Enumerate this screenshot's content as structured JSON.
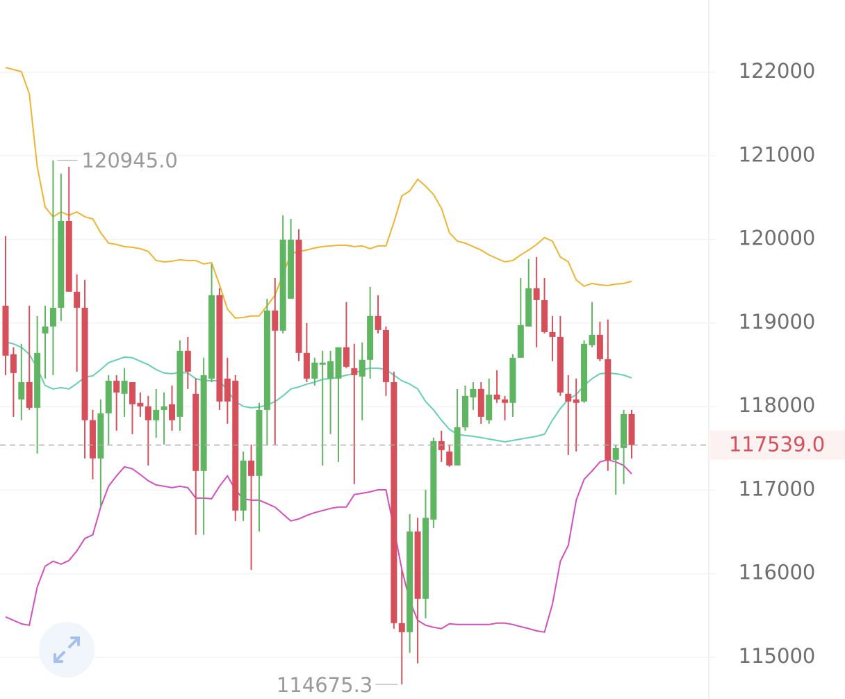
{
  "chart_data": {
    "type": "candlestick",
    "up_color": "#5fb561",
    "down_color": "#d6505b",
    "ylim": [
      114500,
      122865
    ],
    "yticks": [
      115000,
      116000,
      117000,
      118000,
      119000,
      120000,
      121000,
      122000
    ],
    "grid": true,
    "open": [
      119207,
      118625,
      118085,
      118292,
      117985,
      118875,
      118958,
      119182,
      120221,
      119374,
      119182,
      117836,
      117379,
      117919,
      118309,
      118152,
      118292,
      118044,
      118002,
      117836,
      117960,
      118027,
      117877,
      118667,
      118152,
      117229,
      118334,
      119332,
      118334,
      118309,
      116755,
      117353,
      117170,
      117960,
      119149,
      118908,
      119290,
      119997,
      118642,
      118334,
      118501,
      118334,
      118334,
      118709,
      118459,
      118359,
      118559,
      119083,
      118916,
      118292,
      115408,
      115300,
      116505,
      115699,
      116647,
      117586,
      117462,
      117295,
      117752,
      118110,
      118210,
      117836,
      118143,
      118085,
      118044,
      118584,
      118958,
      119415,
      119274,
      118891,
      118833,
      118152,
      118085,
      118060,
      118734,
      118858,
      118567,
      117362,
      117503,
      117910
    ],
    "high": [
      120039,
      118709,
      118750,
      119207,
      119083,
      119207,
      120945,
      120787,
      120870,
      119581,
      119515,
      117960,
      118085,
      118376,
      118376,
      118459,
      118292,
      118168,
      118127,
      118210,
      118168,
      118251,
      118792,
      118833,
      118334,
      118584,
      119706,
      119415,
      118584,
      118376,
      117462,
      117545,
      118044,
      119290,
      119540,
      120288,
      120246,
      120122,
      118999,
      118584,
      118667,
      118667,
      118709,
      119249,
      118750,
      118767,
      119432,
      119332,
      118958,
      118417,
      116048,
      116713,
      116668,
      117004,
      117628,
      117711,
      117545,
      118210,
      118251,
      118292,
      118292,
      118334,
      118434,
      118127,
      118625,
      119540,
      119764,
      119789,
      119540,
      119083,
      119083,
      118376,
      118334,
      118792,
      119249,
      119016,
      119041,
      117545,
      117960,
      117960
    ],
    "low": [
      118376,
      117877,
      117836,
      117960,
      117437,
      118334,
      118376,
      119024,
      119374,
      118417,
      117379,
      117129,
      116797,
      117545,
      117711,
      117877,
      117669,
      117877,
      117295,
      117628,
      117545,
      117711,
      117711,
      118210,
      116464,
      116464,
      118292,
      117960,
      117794,
      116630,
      116630,
      116048,
      116505,
      117545,
      117545,
      118875,
      119290,
      118542,
      118292,
      118251,
      117295,
      117669,
      117337,
      118459,
      117071,
      117836,
      118334,
      118875,
      118127,
      115342,
      114675.3,
      115051,
      114926,
      115466,
      116547,
      117337,
      117279,
      117295,
      117711,
      117960,
      117794,
      117794,
      118044,
      117836,
      117877,
      118584,
      118958,
      118709,
      118875,
      118542,
      118127,
      117420,
      117462,
      118044,
      118709,
      118542,
      117229,
      116946,
      117071,
      117379
    ],
    "close": [
      118609,
      118401,
      118292,
      117985,
      118642,
      118958,
      119182,
      120221,
      119374,
      119182,
      117836,
      117379,
      117919,
      118309,
      118168,
      118309,
      118027,
      118002,
      117836,
      117960,
      118002,
      117836,
      118667,
      118417,
      117229,
      118376,
      119332,
      118060,
      118060,
      116755,
      117353,
      117170,
      117960,
      119149,
      118908,
      119997,
      119997,
      118642,
      118334,
      118526,
      118526,
      118542,
      118709,
      118476,
      118376,
      118559,
      119083,
      118916,
      118292,
      115408,
      115300,
      116505,
      115699,
      116668,
      117586,
      117478,
      117295,
      117752,
      118127,
      118210,
      117877,
      118143,
      118085,
      118044,
      118584,
      118974,
      119415,
      119274,
      118891,
      118833,
      118168,
      118060,
      118044,
      118750,
      118858,
      118567,
      117362,
      117503,
      117910,
      117539
    ],
    "bands": [
      {
        "color": "#efb430",
        "values": [
          122058,
          122033,
          122008,
          121742,
          120870,
          120387,
          120271,
          120329,
          120288,
          120329,
          120271,
          120246,
          120080,
          119955,
          119939,
          119914,
          119905,
          119889,
          119856,
          119747,
          119731,
          119739,
          119756,
          119747,
          119747,
          119706,
          119722,
          119456,
          119166,
          119058,
          119066,
          119083,
          119083,
          119207,
          119332,
          119581,
          119830,
          119856,
          119872,
          119897,
          119914,
          119922,
          119930,
          119930,
          119914,
          119922,
          119889,
          119922,
          119922,
          120205,
          120521,
          120579,
          120720,
          120637,
          120537,
          120371,
          120080,
          119980,
          119955,
          119914,
          119872,
          119814,
          119772,
          119731,
          119747,
          119814,
          119872,
          119939,
          120022,
          119980,
          119789,
          119731,
          119515,
          119440,
          119473,
          119456,
          119448,
          119465,
          119473,
          119498
        ]
      },
      {
        "color": "#63d0b4",
        "values": [
          118775,
          118750,
          118709,
          118625,
          118459,
          118251,
          118210,
          118226,
          118210,
          118276,
          118351,
          118367,
          118442,
          118525,
          118559,
          118592,
          118584,
          118542,
          118501,
          118442,
          118401,
          118392,
          118409,
          118401,
          118334,
          118309,
          118309,
          118309,
          118193,
          118060,
          118002,
          117985,
          117993,
          118018,
          118060,
          118127,
          118210,
          118234,
          118268,
          118292,
          118326,
          118334,
          118351,
          118376,
          118392,
          118442,
          118459,
          118459,
          118442,
          118376,
          118309,
          118268,
          118210,
          118060,
          117960,
          117836,
          117727,
          117669,
          117652,
          117644,
          117628,
          117611,
          117594,
          117578,
          117594,
          117611,
          117628,
          117644,
          117669,
          117836,
          117977,
          118085,
          118143,
          118251,
          118334,
          118392,
          118401,
          118392,
          118376,
          118342
        ]
      },
      {
        "color": "#d24fbd",
        "values": [
          115483,
          115441,
          115400,
          115383,
          115840,
          116089,
          116148,
          116114,
          116156,
          116272,
          116422,
          116464,
          116797,
          117046,
          117170,
          117279,
          117254,
          117187,
          117112,
          117062,
          117046,
          117029,
          117046,
          117029,
          116904,
          116904,
          116896,
          117046,
          117170,
          117004,
          116896,
          116879,
          116879,
          116838,
          116797,
          116713,
          116630,
          116655,
          116697,
          116730,
          116755,
          116780,
          116797,
          116797,
          116946,
          116962,
          116979,
          117004,
          117004,
          116547,
          116048,
          115674,
          115441,
          115383,
          115358,
          115342,
          115400,
          115391,
          115391,
          115391,
          115391,
          115391,
          115408,
          115408,
          115391,
          115366,
          115342,
          115316,
          115300,
          115632,
          116148,
          116339,
          116879,
          117129,
          117229,
          117337,
          117362,
          117337,
          117295,
          117195
        ]
      }
    ],
    "last_price": {
      "value": 117539,
      "label": "117539.0"
    },
    "max_label": {
      "value": 120945,
      "label": "120945.0"
    },
    "min_label": 114675.3
  }
}
